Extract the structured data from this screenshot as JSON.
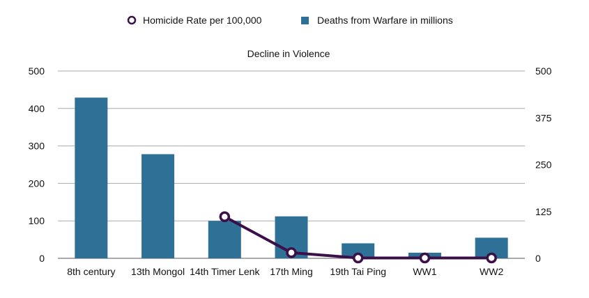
{
  "chart_data": {
    "type": "bar+line",
    "title": "Decline in Violence",
    "categories": [
      "8th century",
      "13th Mongol",
      "14th Timer Lenk",
      "17th Ming",
      "19th Tai Ping",
      "WW1",
      "WW2"
    ],
    "series": [
      {
        "name": "Deaths from Warfare in millions",
        "type": "bar",
        "axis": "left",
        "color": "#2e7096",
        "values": [
          429,
          278,
          100,
          112,
          40,
          15,
          55
        ]
      },
      {
        "name": "Homicide Rate per 100,000",
        "type": "line",
        "axis": "right",
        "color": "#3b0f48",
        "values": [
          null,
          null,
          111,
          15,
          1,
          1,
          1
        ]
      }
    ],
    "left_axis": {
      "ylim": [
        0,
        500
      ],
      "ticks": [
        0,
        100,
        200,
        300,
        400,
        500
      ]
    },
    "right_axis": {
      "ylim": [
        0,
        500
      ],
      "ticks": [
        0,
        125,
        250,
        375,
        500
      ]
    },
    "grid": true,
    "legend_placement": "top"
  }
}
